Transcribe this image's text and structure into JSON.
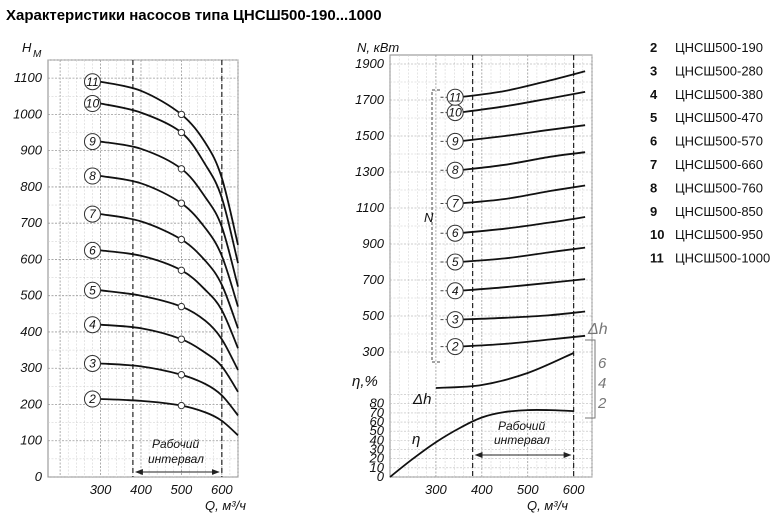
{
  "title": "Характеристики насосов типа ЦНСШ500-190...1000",
  "legend": [
    {
      "num": "2",
      "name": "ЦНСШ500-190"
    },
    {
      "num": "3",
      "name": "ЦНСШ500-280"
    },
    {
      "num": "4",
      "name": "ЦНСШ500-380"
    },
    {
      "num": "5",
      "name": "ЦНСШ500-470"
    },
    {
      "num": "6",
      "name": "ЦНСШ500-570"
    },
    {
      "num": "7",
      "name": "ЦНСШ500-660"
    },
    {
      "num": "8",
      "name": "ЦНСШ500-760"
    },
    {
      "num": "9",
      "name": "ЦНСШ500-850"
    },
    {
      "num": "10",
      "name": "ЦНСШ500-950"
    },
    {
      "num": "11",
      "name": "ЦНСШ500-1000"
    }
  ],
  "chart_data": [
    {
      "type": "line",
      "ylabel": "H",
      "ylabel_sub": "М",
      "xlabel": "Q, м³/ч",
      "xlim": [
        170,
        640
      ],
      "ylim": [
        0,
        1150
      ],
      "xticks": [
        "300",
        "400",
        "500",
        "600"
      ],
      "yticks": [
        "0",
        "100",
        "200",
        "300",
        "400",
        "500",
        "600",
        "700",
        "800",
        "900",
        "1000",
        "1100"
      ],
      "working_interval": {
        "label_line1": "Рабочий",
        "label_line2": "интервал",
        "from": 380,
        "to": 600
      },
      "series": [
        {
          "label": "2",
          "x": [
            300,
            400,
            500,
            560,
            600,
            640
          ],
          "y": [
            215,
            210,
            197,
            178,
            155,
            115
          ]
        },
        {
          "label": "3",
          "x": [
            300,
            400,
            500,
            560,
            600,
            640
          ],
          "y": [
            313,
            305,
            282,
            256,
            225,
            170
          ]
        },
        {
          "label": "4",
          "x": [
            300,
            400,
            500,
            560,
            600,
            640
          ],
          "y": [
            420,
            410,
            380,
            342,
            305,
            235
          ]
        },
        {
          "label": "5",
          "x": [
            300,
            400,
            500,
            560,
            600,
            640
          ],
          "y": [
            515,
            500,
            470,
            430,
            380,
            295
          ]
        },
        {
          "label": "6",
          "x": [
            300,
            400,
            500,
            560,
            600,
            640
          ],
          "y": [
            625,
            610,
            570,
            515,
            460,
            355
          ]
        },
        {
          "label": "7",
          "x": [
            300,
            400,
            500,
            560,
            600,
            640
          ],
          "y": [
            725,
            705,
            655,
            595,
            530,
            410
          ]
        },
        {
          "label": "8",
          "x": [
            300,
            400,
            500,
            560,
            600,
            640
          ],
          "y": [
            830,
            810,
            755,
            685,
            610,
            470
          ]
        },
        {
          "label": "9",
          "x": [
            300,
            400,
            500,
            560,
            600,
            640
          ],
          "y": [
            925,
            905,
            850,
            770,
            690,
            525
          ]
        },
        {
          "label": "10",
          "x": [
            300,
            400,
            500,
            560,
            600,
            640
          ],
          "y": [
            1030,
            1005,
            950,
            860,
            770,
            590
          ]
        },
        {
          "label": "11",
          "x": [
            300,
            400,
            500,
            560,
            600,
            640
          ],
          "y": [
            1090,
            1065,
            1000,
            920,
            825,
            640
          ]
        }
      ]
    },
    {
      "type": "line",
      "ylabel": "N, кВт",
      "xlabel": "Q, м³/ч",
      "xlim": [
        200,
        640
      ],
      "ylim": [
        200,
        1950
      ],
      "xticks": [
        "300",
        "400",
        "500",
        "600"
      ],
      "yticks": [
        "300",
        "500",
        "700",
        "900",
        "1100",
        "1300",
        "1500",
        "1700",
        "1900"
      ],
      "bracket_label": "N",
      "series": [
        {
          "label": "2",
          "x": [
            350,
            450,
            550,
            625
          ],
          "y": [
            330,
            345,
            370,
            390
          ]
        },
        {
          "label": "3",
          "x": [
            350,
            450,
            550,
            625
          ],
          "y": [
            480,
            490,
            505,
            525
          ]
        },
        {
          "label": "4",
          "x": [
            350,
            450,
            550,
            625
          ],
          "y": [
            640,
            660,
            685,
            705
          ]
        },
        {
          "label": "5",
          "x": [
            350,
            450,
            550,
            625
          ],
          "y": [
            800,
            820,
            855,
            880
          ]
        },
        {
          "label": "6",
          "x": [
            350,
            450,
            550,
            625
          ],
          "y": [
            960,
            985,
            1020,
            1050
          ]
        },
        {
          "label": "7",
          "x": [
            350,
            450,
            550,
            625
          ],
          "y": [
            1125,
            1150,
            1195,
            1225
          ]
        },
        {
          "label": "8",
          "x": [
            350,
            450,
            550,
            625
          ],
          "y": [
            1310,
            1340,
            1385,
            1410
          ]
        },
        {
          "label": "9",
          "x": [
            350,
            450,
            550,
            625
          ],
          "y": [
            1470,
            1500,
            1535,
            1560
          ]
        },
        {
          "label": "10",
          "x": [
            350,
            450,
            550,
            625
          ],
          "y": [
            1630,
            1665,
            1710,
            1745
          ]
        },
        {
          "label": "11",
          "x": [
            350,
            450,
            550,
            625
          ],
          "y": [
            1715,
            1750,
            1810,
            1860
          ]
        }
      ]
    },
    {
      "type": "line",
      "ylabel": "η,%",
      "xlabel": "Q, м³/ч",
      "xlim": [
        200,
        640
      ],
      "ylim": [
        0,
        95
      ],
      "xticks": [
        "300",
        "400",
        "500",
        "600"
      ],
      "yticks": [
        "0",
        "10",
        "20",
        "30",
        "40",
        "50",
        "60",
        "70",
        "80"
      ],
      "working_interval": {
        "label_line1": "Рабочий",
        "label_line2": "интервал",
        "from": 380,
        "to": 600
      },
      "series": [
        {
          "label": "η",
          "x": [
            200,
            250,
            300,
            350,
            400,
            450,
            500,
            550,
            600
          ],
          "y": [
            0,
            20,
            38,
            53,
            65,
            71,
            73,
            73,
            72
          ]
        }
      ]
    },
    {
      "type": "line",
      "ylabel": "Δh",
      "right_label": "Δh",
      "right_ticks": [
        "6",
        "4",
        "2"
      ],
      "series": [
        {
          "label": "Δh",
          "x": [
            300,
            400,
            500,
            600
          ],
          "y": [
            2.0,
            2.3,
            3.5,
            5.5
          ]
        }
      ]
    }
  ]
}
